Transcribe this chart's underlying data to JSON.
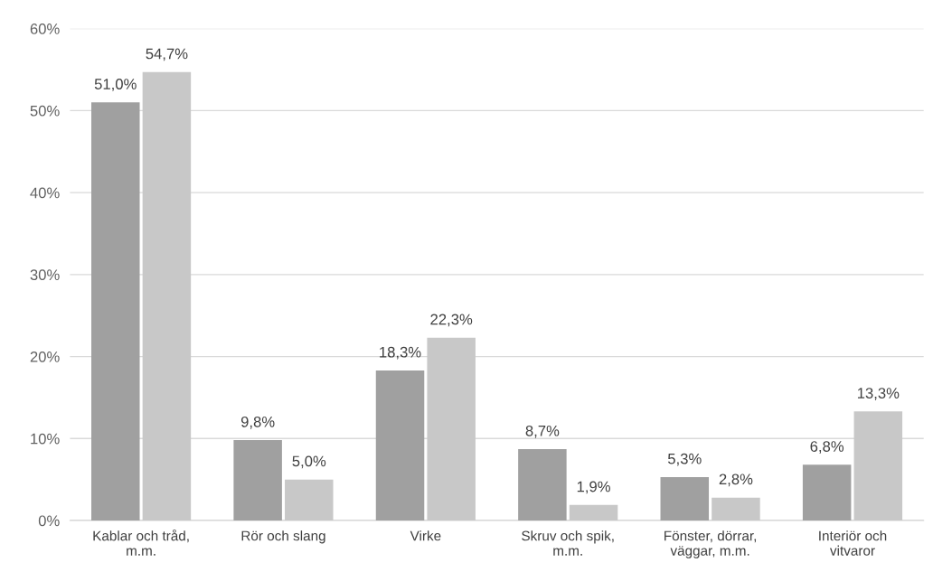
{
  "chart_data": {
    "type": "bar",
    "categories": [
      "Kablar och tråd,\nm.m.",
      "Rör och slang",
      "Virke",
      "Skruv och spik,\nm.m.",
      "Fönster, dörrar,\nväggar, m.m.",
      "Interiör och\nvitvaror"
    ],
    "series": [
      {
        "color": "#a0a0a0",
        "values": [
          51.0,
          9.8,
          18.3,
          8.7,
          5.3,
          6.8
        ],
        "value_labels": [
          "51,0%",
          "9,8%",
          "18,3%",
          "8,7%",
          "5,3%",
          "6,8%"
        ]
      },
      {
        "color": "#c8c8c8",
        "values": [
          54.7,
          5.0,
          22.3,
          1.9,
          2.8,
          13.3
        ],
        "value_labels": [
          "54,7%",
          "5,0%",
          "22,3%",
          "1,9%",
          "2,8%",
          "13,3%"
        ]
      }
    ],
    "ylim": [
      0,
      60
    ],
    "yticks": [
      {
        "value": 0,
        "label": "0%"
      },
      {
        "value": 10,
        "label": "10%"
      },
      {
        "value": 20,
        "label": "20%"
      },
      {
        "value": 30,
        "label": "30%"
      },
      {
        "value": 40,
        "label": "40%"
      },
      {
        "value": 50,
        "label": "50%"
      },
      {
        "value": 60,
        "label": "60%"
      }
    ],
    "grid": "y"
  }
}
